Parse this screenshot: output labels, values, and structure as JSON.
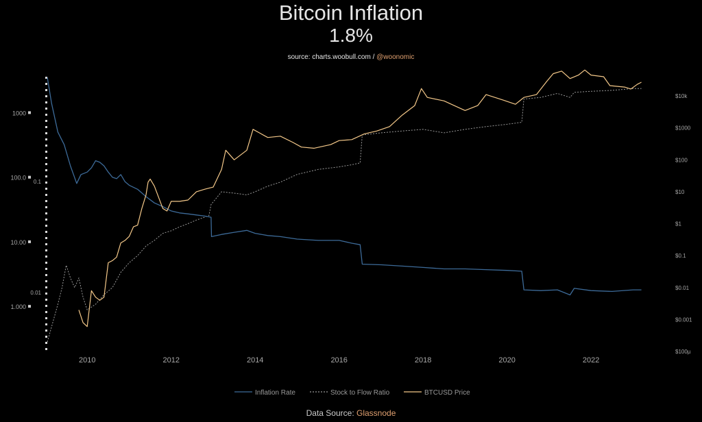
{
  "header": {
    "title": "Bitcoin Inflation",
    "subtitle": "1.8%",
    "source_prefix": "source: charts.woobull.com / ",
    "source_handle": "@woonomic"
  },
  "footer": {
    "prefix": "Data Source: ",
    "provider": "Glassnode"
  },
  "colors": {
    "background": "#000000",
    "inflation": "#3d6b99",
    "stock_to_flow": "#9a9a9a",
    "price": "#f5c98a",
    "axis_text": "#a8a8a8"
  },
  "chart_data": {
    "type": "line",
    "title": "Bitcoin Inflation",
    "subtitle": "1.8%",
    "x_ticks": [
      "2010",
      "2012",
      "2014",
      "2016",
      "2018",
      "2020",
      "2022"
    ],
    "x_range": [
      2009.0,
      2023.5
    ],
    "left_axis_ticks": [
      "1000",
      "100.0",
      "10.00",
      "1.000"
    ],
    "left_axis_range": [
      0.2,
      3600
    ],
    "left_axis_scale": "log",
    "left_inner_ticks": [
      "0.1",
      "0.01"
    ],
    "right_axis_ticks": [
      "$10k",
      "$1000",
      "$100",
      "$10",
      "$1",
      "$0.1",
      "$0.01",
      "$0.001",
      "$100µ"
    ],
    "right_axis_range": [
      0.0001,
      40000
    ],
    "right_axis_scale": "log",
    "grid": false,
    "legend_position": "bottom",
    "series": [
      {
        "name": "Inflation Rate",
        "axis": "left",
        "points": [
          [
            2009.05,
            3500
          ],
          [
            2009.15,
            1400
          ],
          [
            2009.3,
            500
          ],
          [
            2009.45,
            320
          ],
          [
            2009.6,
            150
          ],
          [
            2009.75,
            80
          ],
          [
            2009.85,
            110
          ],
          [
            2010.0,
            120
          ],
          [
            2010.1,
            140
          ],
          [
            2010.2,
            180
          ],
          [
            2010.3,
            170
          ],
          [
            2010.4,
            150
          ],
          [
            2010.5,
            120
          ],
          [
            2010.6,
            100
          ],
          [
            2010.7,
            95
          ],
          [
            2010.8,
            110
          ],
          [
            2010.9,
            85
          ],
          [
            2011.0,
            75
          ],
          [
            2011.2,
            65
          ],
          [
            2011.4,
            50
          ],
          [
            2011.6,
            40
          ],
          [
            2011.8,
            35
          ],
          [
            2012.0,
            30
          ],
          [
            2012.2,
            28
          ],
          [
            2012.4,
            27
          ],
          [
            2012.6,
            26
          ],
          [
            2012.8,
            25
          ],
          [
            2012.95,
            24
          ],
          [
            2012.96,
            12
          ],
          [
            2013.2,
            13
          ],
          [
            2013.5,
            14
          ],
          [
            2013.8,
            15
          ],
          [
            2014.0,
            13.5
          ],
          [
            2014.3,
            12.5
          ],
          [
            2014.6,
            12
          ],
          [
            2015.0,
            11
          ],
          [
            2015.5,
            10.5
          ],
          [
            2016.0,
            10.5
          ],
          [
            2016.3,
            9.5
          ],
          [
            2016.5,
            9
          ],
          [
            2016.55,
            4.5
          ],
          [
            2017.0,
            4.4
          ],
          [
            2017.5,
            4.2
          ],
          [
            2018.0,
            4.0
          ],
          [
            2018.5,
            3.8
          ],
          [
            2019.0,
            3.8
          ],
          [
            2019.5,
            3.7
          ],
          [
            2020.0,
            3.6
          ],
          [
            2020.35,
            3.5
          ],
          [
            2020.4,
            1.8
          ],
          [
            2020.8,
            1.75
          ],
          [
            2021.2,
            1.8
          ],
          [
            2021.5,
            1.5
          ],
          [
            2021.6,
            1.9
          ],
          [
            2022.0,
            1.75
          ],
          [
            2022.5,
            1.7
          ],
          [
            2023.0,
            1.8
          ],
          [
            2023.2,
            1.8
          ]
        ]
      },
      {
        "name": "Stock to Flow Ratio",
        "axis": "right",
        "points": [
          [
            2009.05,
            0.0002
          ],
          [
            2009.2,
            0.001
          ],
          [
            2009.3,
            0.003
          ],
          [
            2009.4,
            0.01
          ],
          [
            2009.5,
            0.05
          ],
          [
            2009.6,
            0.02
          ],
          [
            2009.7,
            0.01
          ],
          [
            2009.8,
            0.02
          ],
          [
            2009.9,
            0.005
          ],
          [
            2010.0,
            0.002
          ],
          [
            2010.2,
            0.003
          ],
          [
            2010.4,
            0.006
          ],
          [
            2010.6,
            0.01
          ],
          [
            2010.8,
            0.03
          ],
          [
            2011.0,
            0.06
          ],
          [
            2011.2,
            0.1
          ],
          [
            2011.4,
            0.2
          ],
          [
            2011.6,
            0.3
          ],
          [
            2011.8,
            0.5
          ],
          [
            2012.0,
            0.6
          ],
          [
            2012.2,
            0.8
          ],
          [
            2012.4,
            1.0
          ],
          [
            2012.6,
            1.3
          ],
          [
            2012.8,
            1.6
          ],
          [
            2012.9,
            1.8
          ],
          [
            2012.95,
            4
          ],
          [
            2013.2,
            10
          ],
          [
            2013.5,
            9
          ],
          [
            2013.8,
            8
          ],
          [
            2014.0,
            10
          ],
          [
            2014.3,
            15
          ],
          [
            2014.6,
            20
          ],
          [
            2015.0,
            35
          ],
          [
            2015.5,
            50
          ],
          [
            2016.0,
            60
          ],
          [
            2016.3,
            70
          ],
          [
            2016.5,
            80
          ],
          [
            2016.55,
            600
          ],
          [
            2017.0,
            700
          ],
          [
            2017.5,
            800
          ],
          [
            2018.0,
            900
          ],
          [
            2018.5,
            700
          ],
          [
            2019.0,
            900
          ],
          [
            2019.5,
            1100
          ],
          [
            2020.0,
            1300
          ],
          [
            2020.35,
            1500
          ],
          [
            2020.4,
            8000
          ],
          [
            2020.8,
            9000
          ],
          [
            2021.2,
            12000
          ],
          [
            2021.5,
            9000
          ],
          [
            2021.6,
            13000
          ],
          [
            2022.0,
            14000
          ],
          [
            2022.5,
            15000
          ],
          [
            2023.0,
            17000
          ],
          [
            2023.2,
            17000
          ]
        ]
      },
      {
        "name": "BTCUSD Price",
        "axis": "right",
        "points": [
          [
            2009.8,
            0.002
          ],
          [
            2009.9,
            0.0008
          ],
          [
            2010.0,
            0.0006
          ],
          [
            2010.1,
            0.008
          ],
          [
            2010.2,
            0.005
          ],
          [
            2010.3,
            0.004
          ],
          [
            2010.4,
            0.005
          ],
          [
            2010.5,
            0.06
          ],
          [
            2010.6,
            0.07
          ],
          [
            2010.7,
            0.09
          ],
          [
            2010.8,
            0.25
          ],
          [
            2010.9,
            0.3
          ],
          [
            2011.0,
            0.4
          ],
          [
            2011.1,
            0.8
          ],
          [
            2011.2,
            0.9
          ],
          [
            2011.3,
            3
          ],
          [
            2011.4,
            8
          ],
          [
            2011.45,
            20
          ],
          [
            2011.5,
            25
          ],
          [
            2011.6,
            15
          ],
          [
            2011.8,
            3
          ],
          [
            2011.9,
            2.5
          ],
          [
            2012.0,
            5
          ],
          [
            2012.2,
            5
          ],
          [
            2012.4,
            5.5
          ],
          [
            2012.6,
            10
          ],
          [
            2012.8,
            12
          ],
          [
            2013.0,
            14
          ],
          [
            2013.2,
            50
          ],
          [
            2013.3,
            200
          ],
          [
            2013.5,
            100
          ],
          [
            2013.8,
            200
          ],
          [
            2013.95,
            900
          ],
          [
            2014.1,
            700
          ],
          [
            2014.3,
            500
          ],
          [
            2014.6,
            550
          ],
          [
            2014.9,
            350
          ],
          [
            2015.1,
            250
          ],
          [
            2015.4,
            230
          ],
          [
            2015.8,
            300
          ],
          [
            2016.0,
            400
          ],
          [
            2016.3,
            430
          ],
          [
            2016.6,
            650
          ],
          [
            2016.9,
            800
          ],
          [
            2017.2,
            1100
          ],
          [
            2017.5,
            2500
          ],
          [
            2017.8,
            5000
          ],
          [
            2017.96,
            17000
          ],
          [
            2018.1,
            9000
          ],
          [
            2018.5,
            7000
          ],
          [
            2018.9,
            4000
          ],
          [
            2019.0,
            3500
          ],
          [
            2019.3,
            5000
          ],
          [
            2019.5,
            11000
          ],
          [
            2019.9,
            7500
          ],
          [
            2020.2,
            5500
          ],
          [
            2020.4,
            9000
          ],
          [
            2020.7,
            11000
          ],
          [
            2020.95,
            29000
          ],
          [
            2021.1,
            50000
          ],
          [
            2021.3,
            60000
          ],
          [
            2021.5,
            35000
          ],
          [
            2021.7,
            45000
          ],
          [
            2021.85,
            65000
          ],
          [
            2022.0,
            45000
          ],
          [
            2022.3,
            40000
          ],
          [
            2022.45,
            21000
          ],
          [
            2022.8,
            19000
          ],
          [
            2022.95,
            16500
          ],
          [
            2023.1,
            23000
          ],
          [
            2023.2,
            27000
          ]
        ]
      }
    ]
  }
}
